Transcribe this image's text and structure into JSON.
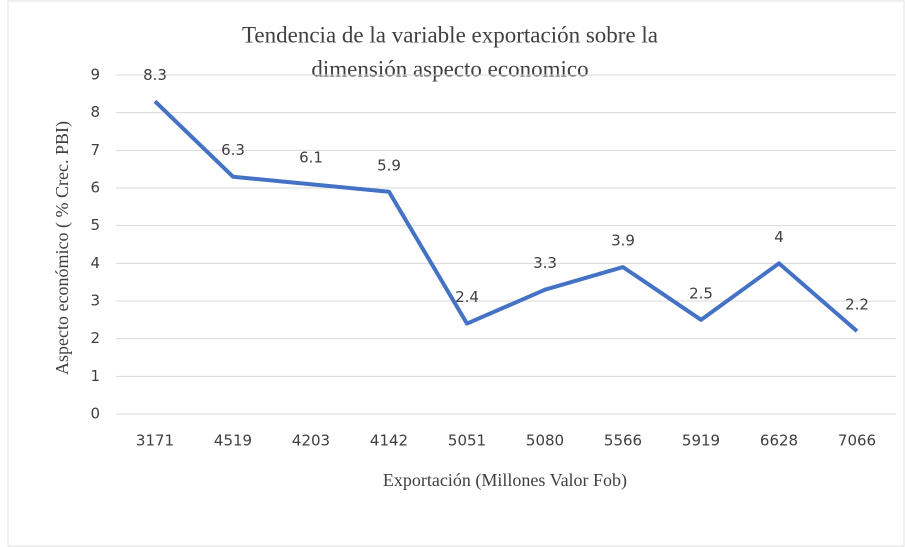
{
  "chart_data": {
    "type": "line",
    "title": [
      "Tendencia de la variable exportación sobre la",
      "dimensión aspecto economico"
    ],
    "x_label": "Exportación  (Millones Valor Fob)",
    "y_label": "Aspecto económico  ( % Crec. PBI)",
    "categories": [
      "3171",
      "4519",
      "4203",
      "4142",
      "5051",
      "5080",
      "5566",
      "5919",
      "6628",
      "7066"
    ],
    "series": [
      {
        "name": "Aspecto económico",
        "color": "#4472c4",
        "values": [
          8.3,
          6.3,
          6.1,
          5.9,
          2.4,
          3.3,
          3.9,
          2.5,
          4,
          2.2
        ]
      }
    ],
    "ylim": [
      0,
      9
    ],
    "yticks": [
      0,
      1,
      2,
      3,
      4,
      5,
      6,
      7,
      8,
      9
    ],
    "grid": true,
    "data_labels": true
  }
}
